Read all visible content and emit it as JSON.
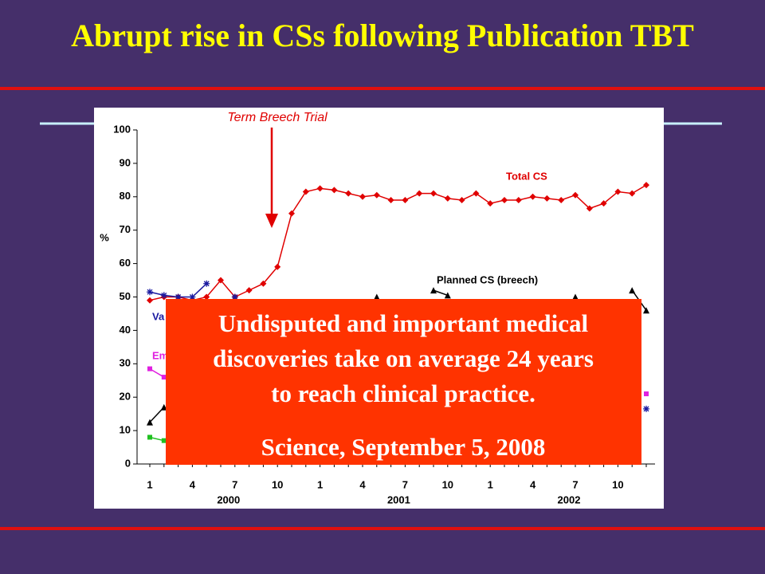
{
  "title": "Abrupt rise in CSs following Publication TBT",
  "callout": {
    "lines": [
      "Undisputed and important medical",
      "discoveries take on average 24 years",
      "to reach clinical practice."
    ],
    "citation": "Science, September 5, 2008"
  },
  "chart_data": {
    "type": "line",
    "y_label": "%",
    "annotation": "Term Breech Trial",
    "categories": [
      "1",
      null,
      null,
      "4",
      null,
      null,
      "7",
      null,
      null,
      "10",
      null,
      null,
      "1",
      null,
      null,
      "4",
      null,
      null,
      "7",
      null,
      null,
      "10",
      null,
      null,
      "1",
      null,
      null,
      "4",
      null,
      null,
      "7",
      null,
      null,
      "10",
      null,
      null
    ],
    "year_labels": [
      "2000",
      "2001",
      "2002"
    ],
    "ylim": [
      0,
      100
    ],
    "yticks": [
      0,
      10,
      20,
      30,
      40,
      50,
      60,
      70,
      80,
      90,
      100
    ],
    "series": [
      {
        "name": "Total CS",
        "color": "#e00000",
        "marker": "diamond",
        "values": [
          49,
          50,
          50,
          49,
          50,
          55,
          50,
          52,
          54,
          59,
          75,
          81.5,
          82.5,
          82,
          81,
          80,
          80.5,
          79,
          79,
          81,
          81,
          79.5,
          79,
          81,
          78,
          79,
          79,
          80,
          79.5,
          79,
          80.5,
          76.5,
          78,
          81.5,
          81,
          83.5
        ]
      },
      {
        "name": "Planned CS (breech)",
        "color": "#000000",
        "marker": "triangle",
        "values": [
          12.5,
          17,
          null,
          null,
          null,
          null,
          null,
          null,
          null,
          null,
          null,
          null,
          null,
          null,
          null,
          null,
          50,
          null,
          null,
          null,
          52,
          50.5,
          null,
          null,
          null,
          null,
          null,
          null,
          null,
          null,
          50,
          null,
          null,
          null,
          52,
          46
        ]
      },
      {
        "name": "Va",
        "color": "#1a1aa0",
        "marker": "star",
        "values": [
          51.5,
          50.5,
          50,
          50,
          54,
          null,
          50,
          null,
          null,
          null,
          null,
          null,
          null,
          null,
          null,
          null,
          null,
          null,
          null,
          null,
          null,
          null,
          null,
          null,
          null,
          null,
          null,
          null,
          null,
          null,
          null,
          null,
          null,
          null,
          null,
          16.5
        ]
      },
      {
        "name": "Em",
        "color": "#e020e0",
        "marker": "square",
        "values": [
          28.5,
          26,
          null,
          null,
          null,
          null,
          null,
          null,
          null,
          null,
          null,
          null,
          null,
          null,
          null,
          null,
          null,
          null,
          null,
          null,
          null,
          null,
          null,
          null,
          null,
          null,
          null,
          null,
          null,
          null,
          null,
          null,
          null,
          null,
          null,
          21
        ]
      },
      {
        "color": "#20c020",
        "marker": "square",
        "values": [
          8,
          7,
          null,
          null,
          null,
          null,
          null,
          null,
          null,
          null,
          null,
          null,
          null,
          null,
          null,
          null,
          null,
          null,
          null,
          null,
          null,
          null,
          null,
          null,
          null,
          null,
          null,
          null,
          null,
          null,
          null,
          null,
          null,
          null,
          null,
          null
        ]
      }
    ]
  }
}
